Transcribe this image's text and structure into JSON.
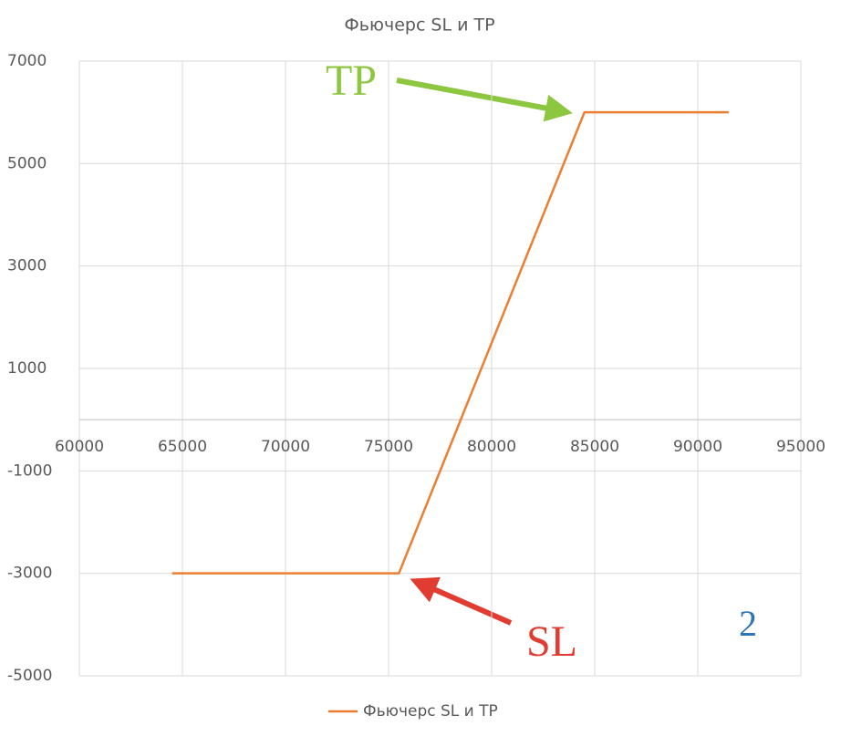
{
  "chart_data": {
    "type": "line",
    "title": "Фьючерс SL и TP",
    "x": [
      64500,
      75500,
      84500,
      91500
    ],
    "series": [
      {
        "name": "Фьючерс SL и TP",
        "color": "#ED7D31",
        "values": [
          -3000,
          -3000,
          6000,
          6000
        ]
      }
    ],
    "xlim": [
      60000,
      95000
    ],
    "xticks": [
      60000,
      65000,
      70000,
      75000,
      80000,
      85000,
      90000,
      95000
    ],
    "ylim": [
      -5000,
      7000
    ],
    "yticks": [
      7000,
      5000,
      3000,
      1000,
      -1000,
      -3000,
      -5000
    ],
    "grid": true,
    "legend": "bottom",
    "annotations": [
      {
        "text": "TP",
        "color": "#8DC63F"
      },
      {
        "text": "SL",
        "color": "#E03C31"
      },
      {
        "text": "2",
        "color": "#2E75B6"
      }
    ]
  }
}
